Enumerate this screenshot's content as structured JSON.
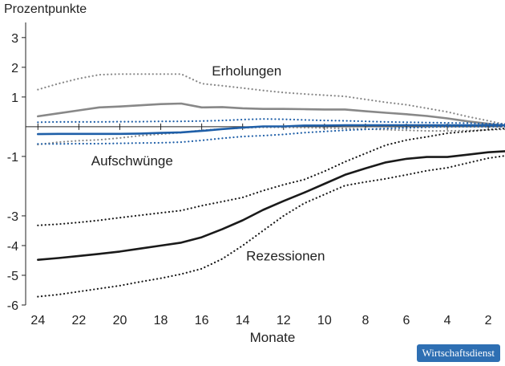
{
  "chart_data": {
    "type": "line",
    "ylabel": "Prozentpunkte",
    "xlabel": "Monate",
    "x_ticks": [
      24,
      22,
      20,
      18,
      16,
      14,
      12,
      10,
      8,
      6,
      4,
      2
    ],
    "x_tick_labels": [
      "24",
      "22",
      "20",
      "18",
      "16",
      "14",
      "12",
      "10",
      "8",
      "6",
      "4",
      "2"
    ],
    "y_ticks": [
      3,
      2,
      1,
      -1,
      -3,
      -4,
      -5,
      -6
    ],
    "y_tick_labels": [
      "3",
      "2",
      "1",
      "-1",
      "-3",
      "-4",
      "-5",
      "-6"
    ],
    "xlim": [
      24.6,
      1.3
    ],
    "ylim": [
      -6,
      3.4
    ],
    "x_reversed": true,
    "grid": false,
    "group_labels": [
      "Erholungen",
      "Aufschwünge",
      "Rezessionen"
    ],
    "x": [
      24,
      23,
      22,
      21,
      20,
      19,
      18,
      17,
      16,
      15,
      14,
      13,
      12,
      11,
      10,
      9,
      8,
      7,
      6,
      5,
      4,
      3,
      2,
      1
    ],
    "series": [
      {
        "group": "Erholungen",
        "style": "solid",
        "color": "#888888",
        "values": [
          0.35,
          0.45,
          0.55,
          0.65,
          0.68,
          0.72,
          0.76,
          0.78,
          0.65,
          0.66,
          0.62,
          0.6,
          0.6,
          0.59,
          0.58,
          0.58,
          0.52,
          0.47,
          0.42,
          0.36,
          0.28,
          0.18,
          0.1,
          0.02
        ]
      },
      {
        "group": "Erholungen",
        "style": "dotted",
        "color": "#888888",
        "values": [
          1.25,
          1.45,
          1.62,
          1.75,
          1.77,
          1.77,
          1.77,
          1.77,
          1.45,
          1.38,
          1.3,
          1.22,
          1.15,
          1.1,
          1.06,
          1.02,
          0.92,
          0.82,
          0.74,
          0.62,
          0.5,
          0.34,
          0.2,
          0.05
        ]
      },
      {
        "group": "Erholungen",
        "style": "dotted",
        "color": "#888888",
        "values": [
          -0.6,
          -0.52,
          -0.47,
          -0.44,
          -0.38,
          -0.3,
          -0.25,
          -0.2,
          -0.12,
          -0.08,
          -0.04,
          -0.02,
          -0.02,
          -0.03,
          -0.04,
          -0.06,
          -0.08,
          -0.1,
          -0.12,
          -0.14,
          -0.14,
          -0.13,
          -0.11,
          -0.08
        ]
      },
      {
        "group": "Aufschwünge",
        "style": "solid",
        "color": "#1f5fa8",
        "values": [
          -0.25,
          -0.24,
          -0.24,
          -0.24,
          -0.24,
          -0.23,
          -0.21,
          -0.19,
          -0.14,
          -0.08,
          -0.03,
          0.01,
          0.01,
          0.04,
          0.04,
          0.05,
          0.05,
          0.05,
          0.05,
          0.05,
          0.05,
          0.05,
          0.05,
          0.05
        ]
      },
      {
        "group": "Aufschwünge",
        "style": "dotted",
        "color": "#1f5fa8",
        "values": [
          0.15,
          0.16,
          0.16,
          0.16,
          0.17,
          0.17,
          0.18,
          0.18,
          0.19,
          0.21,
          0.24,
          0.26,
          0.25,
          0.23,
          0.21,
          0.2,
          0.18,
          0.16,
          0.15,
          0.14,
          0.13,
          0.12,
          0.1,
          0.09
        ]
      },
      {
        "group": "Aufschwünge",
        "style": "dotted",
        "color": "#1f5fa8",
        "values": [
          -0.58,
          -0.58,
          -0.57,
          -0.57,
          -0.56,
          -0.55,
          -0.54,
          -0.52,
          -0.46,
          -0.39,
          -0.33,
          -0.3,
          -0.26,
          -0.2,
          -0.16,
          -0.12,
          -0.09,
          -0.06,
          -0.04,
          -0.02,
          0.0,
          0.0,
          0.0,
          0.0
        ]
      },
      {
        "group": "Rezessionen",
        "style": "solid",
        "color": "#1a1a1a",
        "values": [
          -4.48,
          -4.42,
          -4.35,
          -4.28,
          -4.2,
          -4.1,
          -4.0,
          -3.9,
          -3.72,
          -3.45,
          -3.15,
          -2.8,
          -2.5,
          -2.22,
          -1.92,
          -1.62,
          -1.4,
          -1.2,
          -1.08,
          -1.02,
          -1.02,
          -0.94,
          -0.86,
          -0.82
        ]
      },
      {
        "group": "Rezessionen",
        "style": "dotted",
        "color": "#1a1a1a",
        "values": [
          -3.32,
          -3.28,
          -3.22,
          -3.15,
          -3.06,
          -2.98,
          -2.9,
          -2.82,
          -2.66,
          -2.52,
          -2.38,
          -2.15,
          -1.95,
          -1.78,
          -1.5,
          -1.18,
          -0.9,
          -0.62,
          -0.45,
          -0.34,
          -0.22,
          -0.16,
          -0.1,
          -0.05
        ]
      },
      {
        "group": "Rezessionen",
        "style": "dotted",
        "color": "#1a1a1a",
        "values": [
          -5.72,
          -5.65,
          -5.55,
          -5.45,
          -5.35,
          -5.22,
          -5.1,
          -4.96,
          -4.78,
          -4.45,
          -4.0,
          -3.5,
          -3.0,
          -2.58,
          -2.28,
          -1.98,
          -1.86,
          -1.75,
          -1.62,
          -1.48,
          -1.38,
          -1.22,
          -1.06,
          -0.96
        ]
      }
    ]
  },
  "brand": "Wirtschaftsdienst"
}
